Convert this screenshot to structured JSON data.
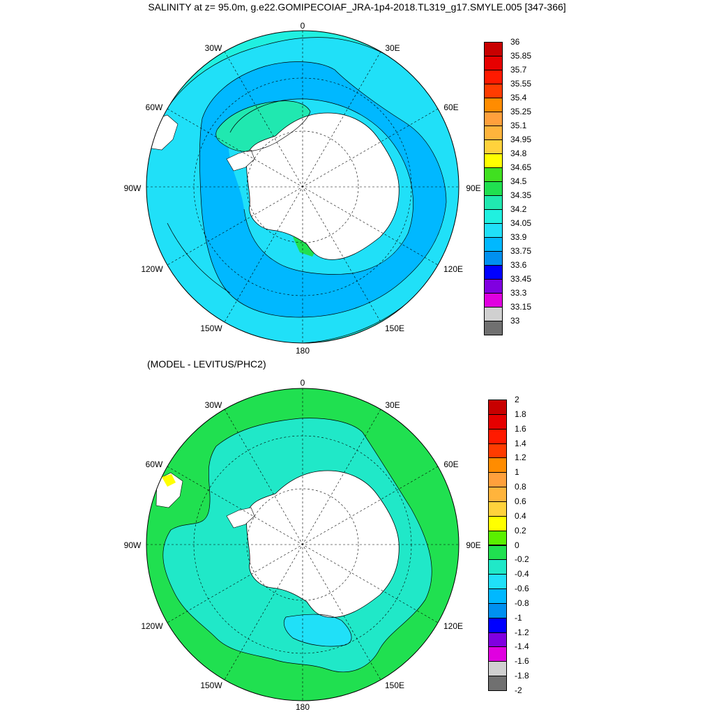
{
  "title": "SALINITY at z=  95.0m, g.e22.GOMIPECOIAF_JRA-1p4-2018.TL319_g17.SMYLE.005 [347-366]",
  "subtitle": "(MODEL - LEVITUS/PHC2)",
  "longitude_labels": {
    "lon0": "0",
    "lon30e": "30E",
    "lon60e": "60E",
    "lon90e": "90E",
    "lon120e": "120E",
    "lon150e": "150E",
    "lon180": "180",
    "lon150w": "150W",
    "lon120w": "120W",
    "lon90w": "90W",
    "lon60w": "60W",
    "lon30w": "30W"
  },
  "colors": {
    "land": "#ffffff",
    "coast": "#000000",
    "grid": "#000000"
  },
  "salinity_colorbar": {
    "labels": [
      "36",
      "35.85",
      "35.7",
      "35.55",
      "35.4",
      "35.25",
      "35.1",
      "34.95",
      "34.8",
      "34.65",
      "34.5",
      "34.35",
      "34.2",
      "34.05",
      "33.9",
      "33.75",
      "33.6",
      "33.45",
      "33.3",
      "33.15",
      "33"
    ],
    "colors": [
      "#c80000",
      "#e60000",
      "#ff1a00",
      "#ff3c00",
      "#ff8c00",
      "#ffa03c",
      "#ffb43c",
      "#ffd23c",
      "#ffff00",
      "#40e020",
      "#20e050",
      "#20e8b0",
      "#20f0e0",
      "#20e0f8",
      "#00b8ff",
      "#0090f0",
      "#0000ff",
      "#8000e0",
      "#e000e0",
      "#d0d0d0",
      "#707070"
    ]
  },
  "difference_colorbar": {
    "labels": [
      "2",
      "1.8",
      "1.6",
      "1.4",
      "1.2",
      "1",
      "0.8",
      "0.6",
      "0.4",
      "0.2",
      "0",
      "-0.2",
      "-0.4",
      "-0.6",
      "-0.8",
      "-1",
      "-1.2",
      "-1.4",
      "-1.6",
      "-1.8",
      "-2"
    ],
    "colors": [
      "#c80000",
      "#e60000",
      "#ff1a00",
      "#ff3c00",
      "#ff8c00",
      "#ffa03c",
      "#ffb43c",
      "#ffd23c",
      "#ffff00",
      "#5af000",
      "#20e050",
      "#20e8c8",
      "#20e0f8",
      "#00b8ff",
      "#0090f0",
      "#0000ff",
      "#8000e0",
      "#e000e0",
      "#d0d0d0",
      "#707070"
    ]
  }
}
